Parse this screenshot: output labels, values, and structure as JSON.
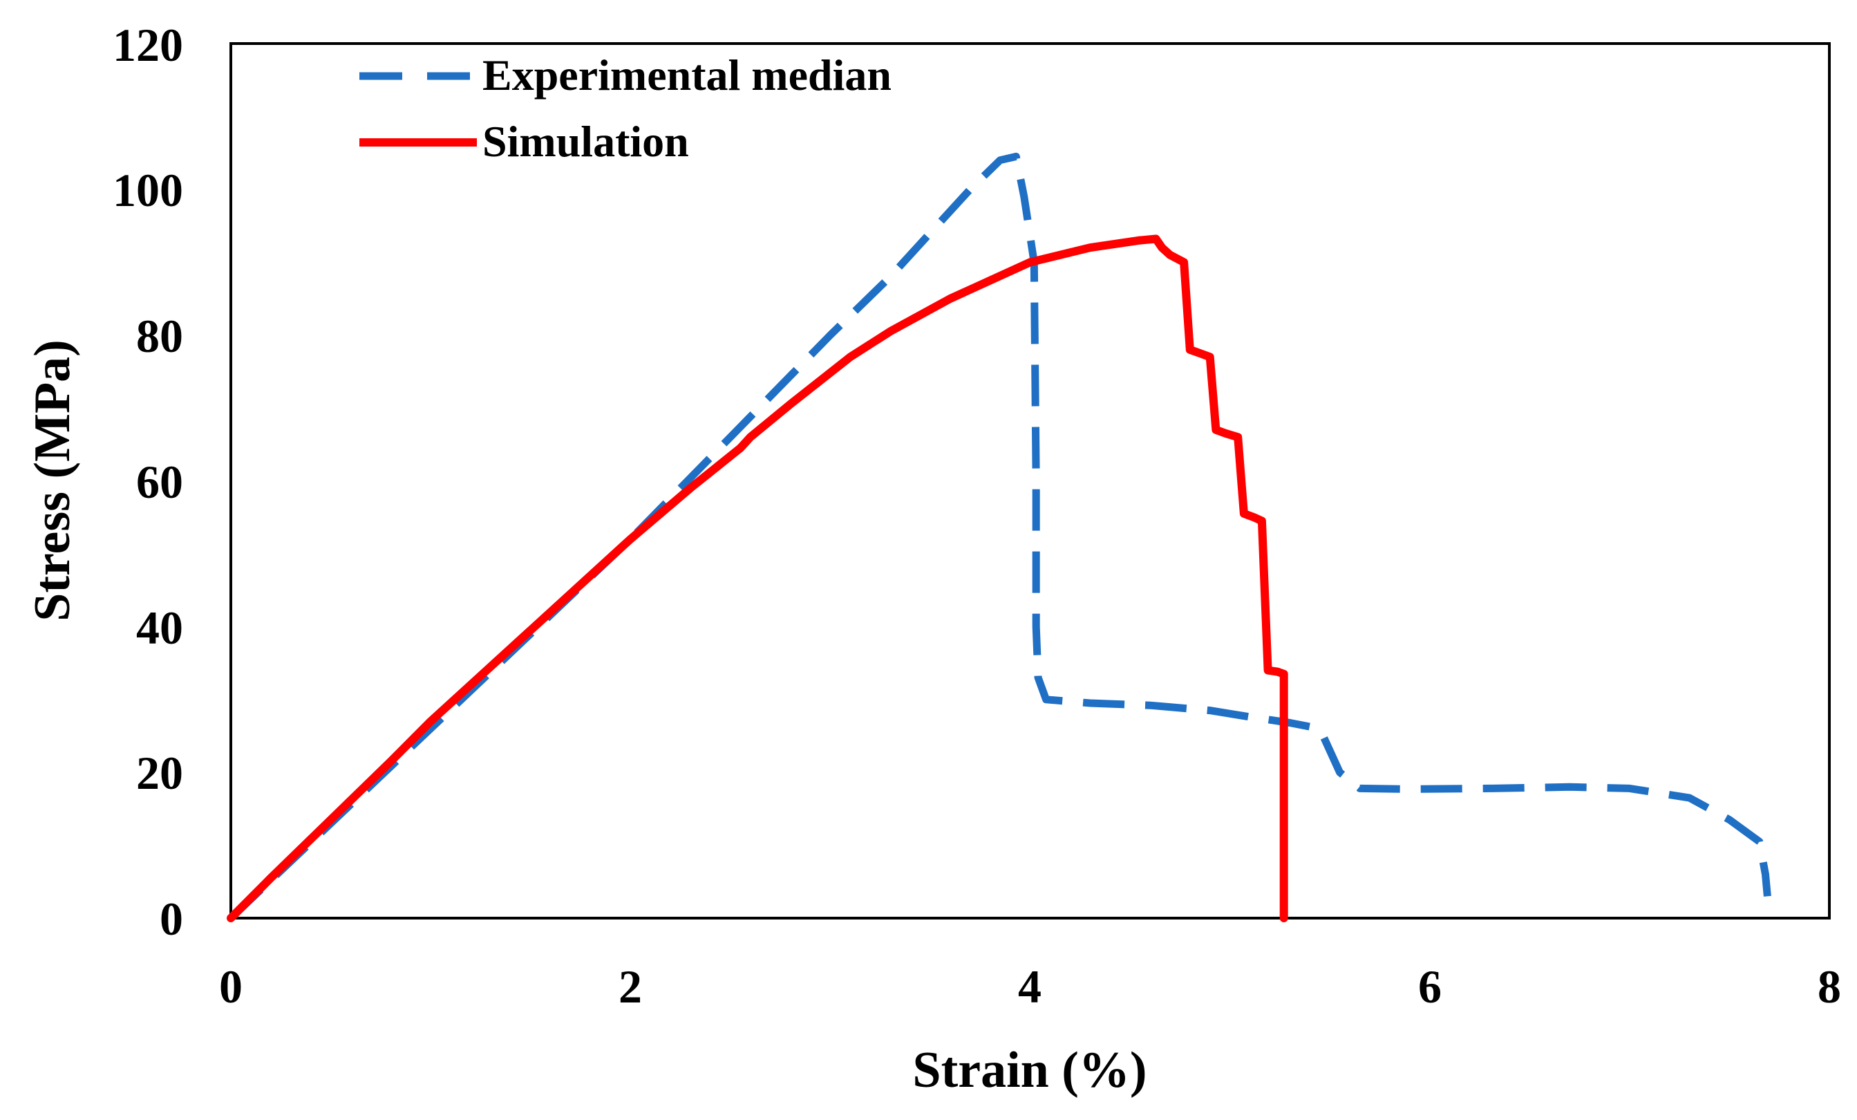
{
  "chart_data": {
    "type": "line",
    "title": "",
    "xlabel": "Strain (%)",
    "ylabel": "Stress (MPa)",
    "xlim": [
      0,
      8
    ],
    "ylim": [
      0,
      120
    ],
    "xticks": [
      0,
      2,
      4,
      6,
      8
    ],
    "xtick_labels": [
      "0",
      "2",
      "4",
      "6",
      "8"
    ],
    "yticks": [
      0,
      20,
      40,
      60,
      80,
      100,
      120
    ],
    "ytick_labels": [
      "0",
      "20",
      "40",
      "60",
      "80",
      "100",
      "120"
    ],
    "grid": false,
    "legend": "top-left",
    "series": [
      {
        "name": "Experimental median",
        "color": "#1f6fc5",
        "style": "dashed",
        "points": [
          [
            0.0,
            0
          ],
          [
            0.5,
            13
          ],
          [
            1.0,
            26
          ],
          [
            1.5,
            39
          ],
          [
            2.0,
            52
          ],
          [
            2.5,
            66
          ],
          [
            3.0,
            80
          ],
          [
            3.3,
            88
          ],
          [
            3.5,
            94
          ],
          [
            3.7,
            100
          ],
          [
            3.85,
            104
          ],
          [
            3.93,
            104.5
          ],
          [
            3.97,
            99
          ],
          [
            4.02,
            90
          ],
          [
            4.03,
            60
          ],
          [
            4.03,
            40
          ],
          [
            4.04,
            33
          ],
          [
            4.08,
            30
          ],
          [
            4.3,
            29.5
          ],
          [
            4.6,
            29.2
          ],
          [
            4.9,
            28.5
          ],
          [
            5.1,
            27.6
          ],
          [
            5.3,
            26.8
          ],
          [
            5.45,
            26
          ],
          [
            5.55,
            20
          ],
          [
            5.65,
            17.8
          ],
          [
            5.9,
            17.7
          ],
          [
            6.3,
            17.8
          ],
          [
            6.7,
            18
          ],
          [
            7.0,
            17.8
          ],
          [
            7.3,
            16.5
          ],
          [
            7.5,
            13.5
          ],
          [
            7.65,
            10.5
          ],
          [
            7.68,
            6
          ],
          [
            7.69,
            3
          ]
        ]
      },
      {
        "name": "Simulation",
        "color": "#ff0000",
        "style": "solid",
        "points": [
          [
            0.0,
            0
          ],
          [
            0.2,
            5.5
          ],
          [
            0.5,
            13.5
          ],
          [
            0.8,
            21.5
          ],
          [
            1.0,
            27
          ],
          [
            1.3,
            34.5
          ],
          [
            1.6,
            42
          ],
          [
            2.0,
            52
          ],
          [
            2.3,
            59
          ],
          [
            2.55,
            64.5
          ],
          [
            2.6,
            66
          ],
          [
            2.8,
            70.5
          ],
          [
            3.1,
            77
          ],
          [
            3.3,
            80.5
          ],
          [
            3.6,
            85
          ],
          [
            4.0,
            90
          ],
          [
            4.3,
            92
          ],
          [
            4.55,
            93
          ],
          [
            4.63,
            93.2
          ],
          [
            4.66,
            92
          ],
          [
            4.7,
            91
          ],
          [
            4.77,
            90
          ],
          [
            4.8,
            78
          ],
          [
            4.85,
            77.5
          ],
          [
            4.9,
            77
          ],
          [
            4.93,
            67
          ],
          [
            4.98,
            66.5
          ],
          [
            5.04,
            66
          ],
          [
            5.07,
            55.5
          ],
          [
            5.12,
            55
          ],
          [
            5.16,
            54.5
          ],
          [
            5.19,
            34
          ],
          [
            5.24,
            33.8
          ],
          [
            5.27,
            33.5
          ],
          [
            5.27,
            0
          ]
        ]
      }
    ]
  }
}
